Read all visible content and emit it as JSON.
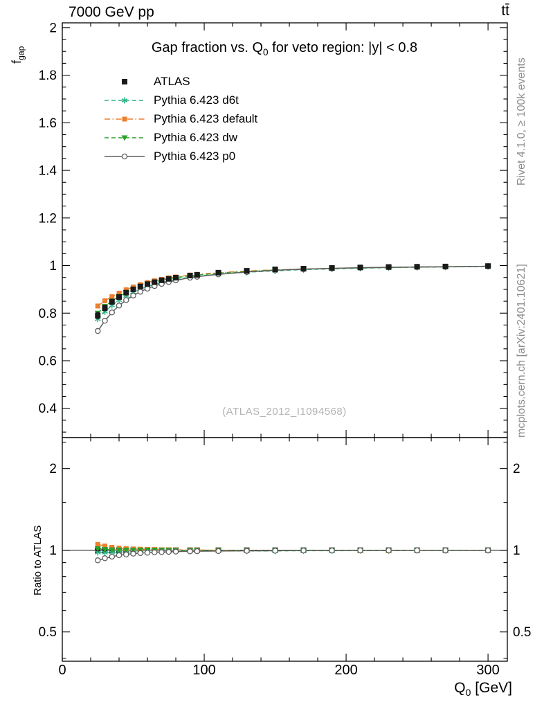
{
  "header": {
    "left": "7000 GeV pp",
    "right": "tt̄"
  },
  "side_captions": {
    "top_right": "Rivet 4.1.0, ≥ 100k events",
    "bottom_right": "mcplots.cern.ch [arXiv:2401.10621]"
  },
  "watermark": "(ATLAS_2012_I1094568)",
  "labels": {
    "title_pre": "Gap fraction vs. Q",
    "title_sub": "0",
    "title_post": " for veto region: |y| < 0.8",
    "ylabel_top_pre": "f",
    "ylabel_top_sub": "gap",
    "ylabel_bottom": "Ratio to ATLAS",
    "xlabel_pre": "Q",
    "xlabel_sub": "0",
    "xlabel_post": " [GeV]"
  },
  "chart_data": {
    "type": "line",
    "title": "Gap fraction vs. Q0 for veto region: |y| < 0.8",
    "xlabel": "Q0 [GeV]",
    "ylabel_top": "fgap",
    "ylabel_ratio": "Ratio to ATLAS",
    "xlim": [
      0,
      313.6
    ],
    "xticks": [
      0,
      100,
      200,
      300
    ],
    "xtick_labels": [
      "0",
      "100",
      "200",
      "300"
    ],
    "top_panel": {
      "ylim": [
        0.277,
        2.02
      ],
      "yticks": [
        0.4,
        0.6,
        0.8,
        1.0,
        1.2,
        1.4,
        1.6,
        1.8,
        2.0
      ],
      "ytick_labels": [
        "0.4",
        "0.6",
        "0.8",
        "1",
        "1.2",
        "1.4",
        "1.6",
        "1.8",
        "2"
      ]
    },
    "ratio_panel": {
      "scale": "log",
      "ylim": [
        0.39,
        2.6
      ],
      "yticks": [
        0.5,
        1,
        2
      ],
      "ytick_labels": [
        "0.5",
        "1",
        "2"
      ]
    },
    "legend_position": "top-left-inside",
    "grid": false,
    "x": [
      25,
      30,
      35,
      40,
      45,
      50,
      55,
      60,
      65,
      70,
      75,
      80,
      90,
      95,
      110,
      130,
      150,
      170,
      190,
      210,
      230,
      250,
      270,
      300
    ],
    "series": [
      {
        "name": "ATLAS",
        "color": "#1a1a1a",
        "marker": "square-filled",
        "line": "none",
        "values": [
          0.79,
          0.822,
          0.848,
          0.868,
          0.886,
          0.9,
          0.912,
          0.922,
          0.93,
          0.938,
          0.944,
          0.949,
          0.958,
          0.961,
          0.97,
          0.978,
          0.984,
          0.987,
          0.99,
          0.992,
          0.994,
          0.995,
          0.996,
          0.998
        ],
        "errors": [
          0.013,
          0.012,
          0.011,
          0.01,
          0.009,
          0.009,
          0.008,
          0.008,
          0.007,
          0.007,
          0.006,
          0.006,
          0.005,
          0.005,
          0.005,
          0.004,
          0.004,
          0.003,
          0.003,
          0.003,
          0.002,
          0.002,
          0.002,
          0.002
        ]
      },
      {
        "name": "Pythia 6.423 d6t",
        "color": "#2fb389",
        "marker": "star",
        "line": "dashed",
        "values": [
          0.775,
          0.806,
          0.833,
          0.855,
          0.873,
          0.888,
          0.901,
          0.912,
          0.921,
          0.929,
          0.936,
          0.942,
          0.951,
          0.955,
          0.964,
          0.972,
          0.978,
          0.983,
          0.986,
          0.989,
          0.991,
          0.993,
          0.994,
          0.996
        ]
      },
      {
        "name": "Pythia 6.423 default",
        "color": "#ee7f2d",
        "marker": "square-small",
        "line": "dashdot",
        "values": [
          0.83,
          0.852,
          0.869,
          0.884,
          0.898,
          0.91,
          0.92,
          0.929,
          0.936,
          0.942,
          0.948,
          0.952,
          0.96,
          0.963,
          0.97,
          0.977,
          0.982,
          0.986,
          0.988,
          0.991,
          0.992,
          0.994,
          0.995,
          0.997
        ]
      },
      {
        "name": "Pythia 6.423 dw",
        "color": "#2aa22a",
        "marker": "triangle-down",
        "line": "dashed",
        "values": [
          0.8,
          0.828,
          0.851,
          0.87,
          0.887,
          0.901,
          0.913,
          0.923,
          0.931,
          0.938,
          0.944,
          0.949,
          0.957,
          0.96,
          0.968,
          0.975,
          0.981,
          0.985,
          0.988,
          0.99,
          0.992,
          0.994,
          0.995,
          0.997
        ]
      },
      {
        "name": "Pythia 6.423 p0",
        "color": "#5f5f5f",
        "marker": "circle-open",
        "line": "solid",
        "values": [
          0.725,
          0.768,
          0.803,
          0.832,
          0.855,
          0.874,
          0.89,
          0.903,
          0.914,
          0.923,
          0.931,
          0.938,
          0.949,
          0.953,
          0.963,
          0.973,
          0.98,
          0.985,
          0.988,
          0.991,
          0.993,
          0.994,
          0.995,
          0.997
        ]
      }
    ]
  }
}
